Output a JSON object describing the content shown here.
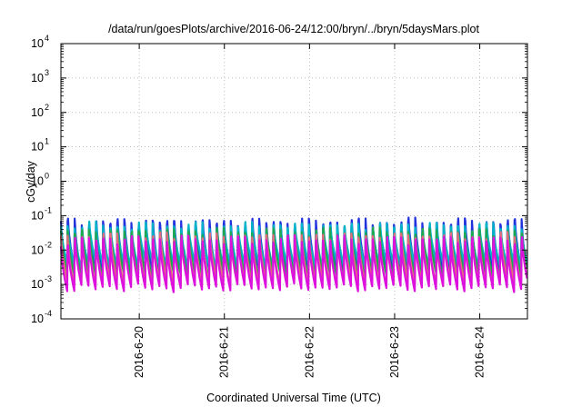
{
  "chart_data": {
    "type": "line",
    "title": "/data/run/goesPlots/archive/2016-06-24/12:00/bryn/../bryn/5daysMars.plot",
    "xlabel": "Coordinated Universal Time (UTC)",
    "ylabel": "cGy/day",
    "yscale": "log",
    "ylim": [
      0.0001,
      10000
    ],
    "xlim_days": [
      19.08,
      24.56
    ],
    "grid": true,
    "y_ticks": [
      {
        "value": 0.0001,
        "base": "10",
        "exp": "-4"
      },
      {
        "value": 0.001,
        "base": "10",
        "exp": "-3"
      },
      {
        "value": 0.01,
        "base": "10",
        "exp": "-2"
      },
      {
        "value": 0.1,
        "base": "10",
        "exp": "-1"
      },
      {
        "value": 1,
        "base": "10",
        "exp": "0"
      },
      {
        "value": 10,
        "base": "10",
        "exp": "1"
      },
      {
        "value": 100,
        "base": "10",
        "exp": "2"
      },
      {
        "value": 1000,
        "base": "10",
        "exp": "3"
      },
      {
        "value": 10000,
        "base": "10",
        "exp": "4"
      }
    ],
    "x_ticks": [
      {
        "day": 20,
        "label": "2016-6-20"
      },
      {
        "day": 21,
        "label": "2016-6-21"
      },
      {
        "day": 22,
        "label": "2016-6-22"
      },
      {
        "day": 23,
        "label": "2016-6-23"
      },
      {
        "day": 24,
        "label": "2016-6-24"
      }
    ],
    "sawtooth_period_hours": 2,
    "series": [
      {
        "color": "#2233dd",
        "peak": 0.058,
        "trough": 0.0025
      },
      {
        "color": "#00b4c8",
        "peak": 0.045,
        "trough": 0.004
      },
      {
        "color": "#1fa84f",
        "peak": 0.03,
        "trough": 0.002
      },
      {
        "color": "#e06b7d",
        "peak": 0.022,
        "trough": 0.0012
      },
      {
        "color": "#dd11dd",
        "peak": 0.018,
        "trough": 0.00085
      }
    ]
  }
}
